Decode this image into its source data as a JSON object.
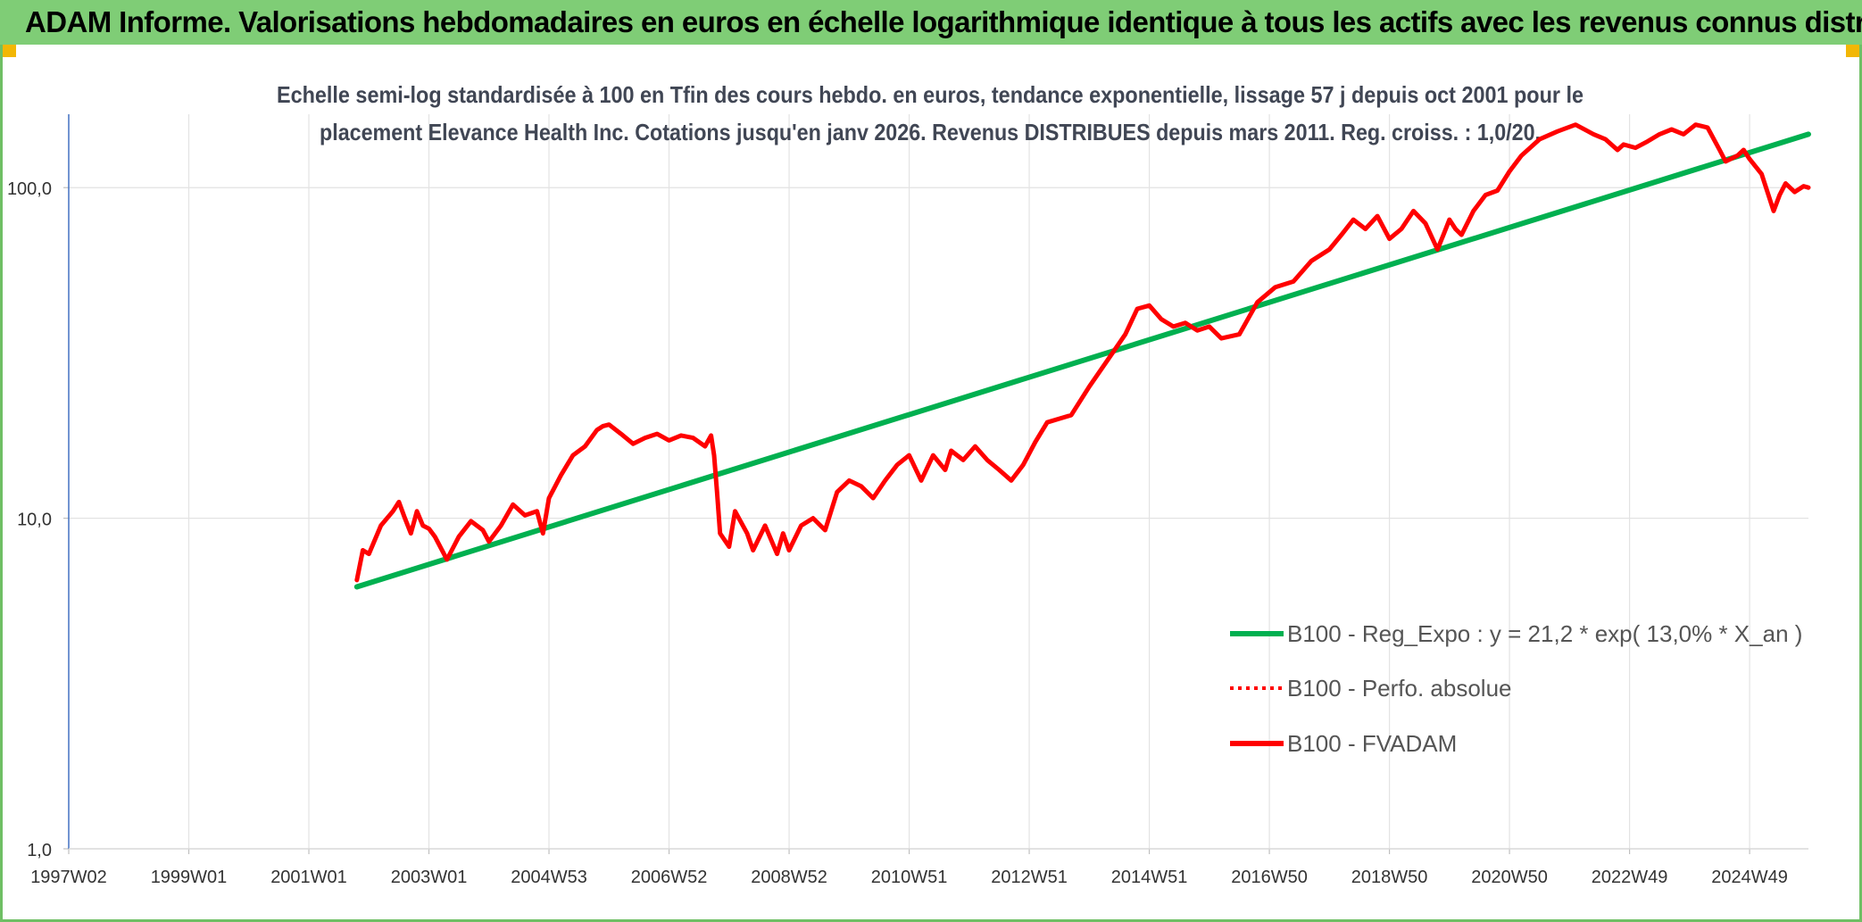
{
  "header": {
    "title": "ADAM Informe. Valorisations hebdomadaires en euros en échelle logarithmique identique à tous les actifs avec les revenus connus distribués"
  },
  "colors": {
    "banner": "#7fcd76",
    "trend": "#00b050",
    "series": "#ff0000",
    "corner": "#f2b705"
  },
  "chart_data": {
    "type": "line",
    "subtitle_lines": [
      "Echelle semi-log standardisée à 100 en Tfin des cours hebdo. en euros, tendance exponentielle, lissage 57 j depuis oct 2001 pour le",
      "placement Elevance Health Inc. Cotations jusqu'en janv 2026. Revenus DISTRIBUES depuis mars 2011. Reg. croiss. : 1,0/20."
    ],
    "y_scale": "log",
    "ylim": [
      1,
      180
    ],
    "xlim": [
      1997.0,
      2025.98
    ],
    "yticks": [
      {
        "value": 1,
        "label": "1,0"
      },
      {
        "value": 10,
        "label": "10,0"
      },
      {
        "value": 100,
        "label": "100,0"
      }
    ],
    "xticks": [
      {
        "value": 1997.0,
        "label": "1997W02"
      },
      {
        "value": 1999.0,
        "label": "1999W01"
      },
      {
        "value": 2001.0,
        "label": "2001W01"
      },
      {
        "value": 2003.0,
        "label": "2003W01"
      },
      {
        "value": 2005.0,
        "label": "2004W53"
      },
      {
        "value": 2007.0,
        "label": "2006W52"
      },
      {
        "value": 2009.0,
        "label": "2008W52"
      },
      {
        "value": 2011.0,
        "label": "2010W51"
      },
      {
        "value": 2013.0,
        "label": "2012W51"
      },
      {
        "value": 2015.0,
        "label": "2014W51"
      },
      {
        "value": 2017.0,
        "label": "2016W50"
      },
      {
        "value": 2019.0,
        "label": "2018W50"
      },
      {
        "value": 2021.0,
        "label": "2020W50"
      },
      {
        "value": 2023.0,
        "label": "2022W49"
      },
      {
        "value": 2025.0,
        "label": "2024W49"
      }
    ],
    "grid": "vertical and horizontal",
    "legend_position": "bottom-right",
    "series": [
      {
        "name": "B100 - Reg_Expo : y = 21,2 * exp( 13,0% * X_an )",
        "style": "solid",
        "color": "#00b050",
        "x": [
          2001.8,
          2025.98
        ],
        "y": [
          6.2,
          145
        ]
      },
      {
        "name": "B100 - Perfo. absolue",
        "style": "dotted",
        "color": "#ff0000",
        "x": [],
        "y": []
      },
      {
        "name": "B100 - FVADAM",
        "style": "solid",
        "color": "#ff0000",
        "x": [
          2001.8,
          2001.9,
          2002.0,
          2002.2,
          2002.4,
          2002.5,
          2002.6,
          2002.7,
          2002.8,
          2002.9,
          2003.0,
          2003.1,
          2003.3,
          2003.5,
          2003.7,
          2003.9,
          2004.0,
          2004.2,
          2004.4,
          2004.6,
          2004.8,
          2004.9,
          2005.0,
          2005.2,
          2005.4,
          2005.6,
          2005.8,
          2005.9,
          2006.0,
          2006.2,
          2006.4,
          2006.6,
          2006.8,
          2007.0,
          2007.2,
          2007.4,
          2007.6,
          2007.7,
          2007.75,
          2007.8,
          2007.85,
          2008.0,
          2008.1,
          2008.3,
          2008.4,
          2008.6,
          2008.8,
          2008.9,
          2009.0,
          2009.2,
          2009.4,
          2009.6,
          2009.8,
          2010.0,
          2010.2,
          2010.4,
          2010.6,
          2010.8,
          2011.0,
          2011.2,
          2011.4,
          2011.6,
          2011.7,
          2011.9,
          2012.1,
          2012.3,
          2012.5,
          2012.7,
          2012.9,
          2013.1,
          2013.3,
          2013.5,
          2013.7,
          2014.0,
          2014.3,
          2014.6,
          2014.8,
          2015.0,
          2015.2,
          2015.4,
          2015.6,
          2015.8,
          2016.0,
          2016.2,
          2016.5,
          2016.8,
          2017.1,
          2017.4,
          2017.7,
          2018.0,
          2018.2,
          2018.4,
          2018.6,
          2018.8,
          2019.0,
          2019.2,
          2019.4,
          2019.6,
          2019.8,
          2019.9,
          2020.0,
          2020.1,
          2020.2,
          2020.4,
          2020.6,
          2020.8,
          2021.0,
          2021.2,
          2021.5,
          2021.8,
          2022.1,
          2022.4,
          2022.6,
          2022.8,
          2022.9,
          2023.1,
          2023.3,
          2023.5,
          2023.7,
          2023.9,
          2024.1,
          2024.3,
          2024.5,
          2024.6,
          2024.8,
          2024.9,
          2025.0,
          2025.2,
          2025.4,
          2025.5,
          2025.6,
          2025.75,
          2025.9,
          2025.98
        ],
        "y": [
          6.5,
          8.0,
          7.8,
          9.5,
          10.5,
          11.2,
          10.0,
          9.0,
          10.5,
          9.5,
          9.3,
          8.8,
          7.5,
          8.8,
          9.8,
          9.2,
          8.5,
          9.5,
          11.0,
          10.2,
          10.5,
          9.0,
          11.5,
          13.5,
          15.5,
          16.5,
          18.5,
          19.0,
          19.2,
          18.0,
          16.8,
          17.5,
          18.0,
          17.2,
          17.8,
          17.5,
          16.5,
          17.8,
          15.5,
          12.0,
          9.0,
          8.2,
          10.5,
          9.0,
          8.0,
          9.5,
          7.8,
          9.0,
          8.0,
          9.5,
          10.0,
          9.2,
          12.0,
          13.0,
          12.5,
          11.5,
          13.0,
          14.5,
          15.5,
          13.0,
          15.5,
          14.0,
          16.0,
          15.0,
          16.5,
          15.0,
          14.0,
          13.0,
          14.5,
          17.0,
          19.5,
          20.0,
          20.5,
          25.0,
          30.0,
          36.0,
          43.0,
          44.0,
          40.0,
          38.0,
          39.0,
          37.0,
          38.0,
          35.0,
          36.0,
          45.0,
          50.0,
          52.0,
          60.0,
          65.0,
          72.0,
          80.0,
          75.0,
          82.0,
          70.0,
          75.0,
          85.0,
          78.0,
          65.0,
          72.0,
          80.0,
          75.0,
          72.0,
          85.0,
          95.0,
          98.0,
          112.0,
          125.0,
          140.0,
          148.0,
          155.0,
          145.0,
          140.0,
          130.0,
          135.0,
          132.0,
          138.0,
          145.0,
          150.0,
          145.0,
          155.0,
          152.0,
          130.0,
          120.0,
          125.0,
          130.0,
          122.0,
          110.0,
          85.0,
          95.0,
          103.0,
          97.0,
          101.0,
          100.0
        ]
      }
    ]
  }
}
